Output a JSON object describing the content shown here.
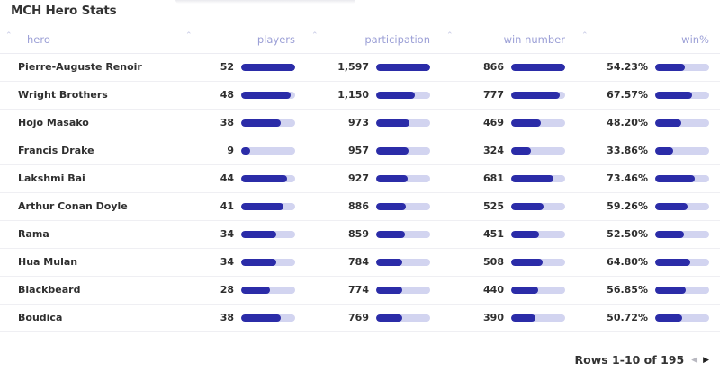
{
  "title": "MCH Hero Stats",
  "columns": [
    "hero",
    "players",
    "participation",
    "win number",
    "win%"
  ],
  "rows": [
    {
      "hero": "Pierre-Auguste Renoir",
      "players": "52",
      "participation": "1,597",
      "win_number": "866",
      "win_pct": "54.23%",
      "bars": [
        1.0,
        1.0,
        1.0,
        0.542
      ]
    },
    {
      "hero": "Wright Brothers",
      "players": "48",
      "participation": "1,150",
      "win_number": "777",
      "win_pct": "67.57%",
      "bars": [
        0.923,
        0.72,
        0.897,
        0.676
      ]
    },
    {
      "hero": "Hōjō Masako",
      "players": "38",
      "participation": "973",
      "win_number": "469",
      "win_pct": "48.20%",
      "bars": [
        0.731,
        0.609,
        0.542,
        0.482
      ]
    },
    {
      "hero": "Francis Drake",
      "players": "9",
      "participation": "957",
      "win_number": "324",
      "win_pct": "33.86%",
      "bars": [
        0.173,
        0.599,
        0.374,
        0.339
      ]
    },
    {
      "hero": "Lakshmi Bai",
      "players": "44",
      "participation": "927",
      "win_number": "681",
      "win_pct": "73.46%",
      "bars": [
        0.846,
        0.58,
        0.786,
        0.735
      ]
    },
    {
      "hero": "Arthur Conan Doyle",
      "players": "41",
      "participation": "886",
      "win_number": "525",
      "win_pct": "59.26%",
      "bars": [
        0.788,
        0.555,
        0.606,
        0.593
      ]
    },
    {
      "hero": "Rama",
      "players": "34",
      "participation": "859",
      "win_number": "451",
      "win_pct": "52.50%",
      "bars": [
        0.654,
        0.538,
        0.521,
        0.525
      ]
    },
    {
      "hero": "Hua Mulan",
      "players": "34",
      "participation": "784",
      "win_number": "508",
      "win_pct": "64.80%",
      "bars": [
        0.654,
        0.491,
        0.587,
        0.648
      ]
    },
    {
      "hero": "Blackbeard",
      "players": "28",
      "participation": "774",
      "win_number": "440",
      "win_pct": "56.85%",
      "bars": [
        0.538,
        0.485,
        0.508,
        0.569
      ]
    },
    {
      "hero": "Boudica",
      "players": "38",
      "participation": "769",
      "win_number": "390",
      "win_pct": "50.72%",
      "bars": [
        0.731,
        0.482,
        0.45,
        0.507
      ]
    }
  ],
  "footer": {
    "rows_label": "Rows 1-10 of 195"
  },
  "colors": {
    "bar_fill": "#2b2ca8",
    "bar_track": "#d2d4f0",
    "header_text": "#9b9fd6"
  },
  "icons": {
    "sort": "sort-caret-icon",
    "prev": "prev-page-icon",
    "next": "next-page-icon"
  }
}
